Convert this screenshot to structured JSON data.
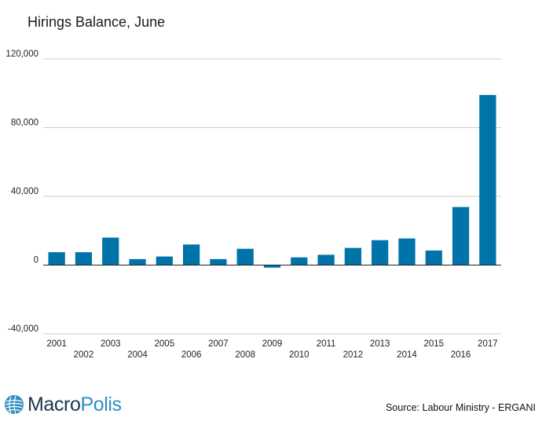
{
  "chart_data": {
    "type": "bar",
    "title": "Hirings Balance, June",
    "categories": [
      "2001",
      "2002",
      "2003",
      "2004",
      "2005",
      "2006",
      "2007",
      "2008",
      "2009",
      "2010",
      "2011",
      "2012",
      "2013",
      "2014",
      "2015",
      "2016",
      "2017"
    ],
    "values": [
      7500,
      7500,
      16000,
      3500,
      5000,
      12000,
      3500,
      9500,
      -1500,
      4500,
      6000,
      10000,
      14500,
      15500,
      8500,
      33800,
      99000
    ],
    "ylim": [
      -40000,
      120000
    ],
    "yticks": [
      -40000,
      0,
      40000,
      80000,
      120000
    ],
    "ytick_labels": [
      "-40,000",
      "0",
      "40,000",
      "80,000",
      "120,000"
    ],
    "bar_color": "#0073a8",
    "xlabel": "",
    "ylabel": "",
    "grid": true
  },
  "footer": {
    "logo_part1": "Macro",
    "logo_part2": "Polis",
    "source": "Source: Labour Ministry - ERGANI"
  }
}
